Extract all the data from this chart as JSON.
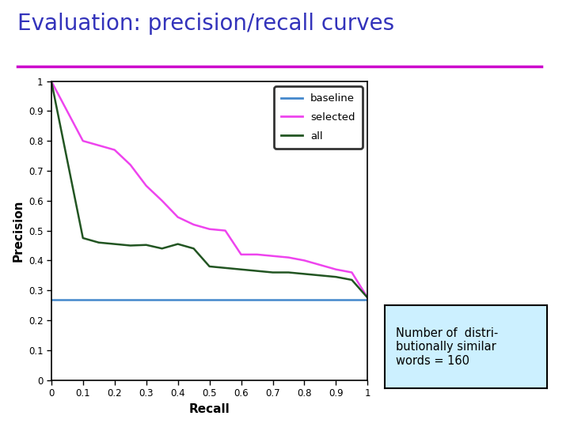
{
  "title": "Evaluation: precision/recall curves",
  "title_color": "#3333bb",
  "title_fontsize": 20,
  "xlabel": "Recall",
  "ylabel": "Precision",
  "xlabel_fontsize": 11,
  "ylabel_fontsize": 11,
  "separator_color": "#cc00cc",
  "baseline": {
    "x": [
      0.0,
      1.0
    ],
    "y": [
      0.27,
      0.27
    ],
    "color": "#4488cc",
    "linewidth": 1.8,
    "label": "baseline"
  },
  "selected": {
    "x": [
      0.0,
      0.1,
      0.2,
      0.25,
      0.3,
      0.35,
      0.4,
      0.45,
      0.5,
      0.55,
      0.6,
      0.65,
      0.7,
      0.75,
      0.8,
      0.85,
      0.9,
      0.95,
      1.0
    ],
    "y": [
      1.0,
      0.8,
      0.77,
      0.72,
      0.65,
      0.6,
      0.545,
      0.52,
      0.505,
      0.5,
      0.42,
      0.42,
      0.415,
      0.41,
      0.4,
      0.385,
      0.37,
      0.36,
      0.275
    ],
    "color": "#ee44ee",
    "linewidth": 1.8,
    "label": "selected"
  },
  "all": {
    "x": [
      0.0,
      0.1,
      0.15,
      0.2,
      0.25,
      0.3,
      0.35,
      0.4,
      0.45,
      0.5,
      0.55,
      0.6,
      0.65,
      0.7,
      0.75,
      0.8,
      0.85,
      0.9,
      0.95,
      1.0
    ],
    "y": [
      1.0,
      0.475,
      0.46,
      0.455,
      0.45,
      0.452,
      0.44,
      0.455,
      0.44,
      0.38,
      0.375,
      0.37,
      0.365,
      0.36,
      0.36,
      0.355,
      0.35,
      0.345,
      0.335,
      0.275
    ],
    "color": "#225522",
    "linewidth": 1.8,
    "label": "all"
  },
  "annotation_text": "Number of  distri-\nbutionally similar\nwords = 160",
  "annotation_bg": "#ccf0ff",
  "xlim": [
    0.0,
    1.0
  ],
  "ylim": [
    0.0,
    1.0
  ],
  "xticks": [
    0.0,
    0.1,
    0.2,
    0.3,
    0.4,
    0.5,
    0.6,
    0.7,
    0.8,
    0.9,
    1.0
  ],
  "yticks": [
    0.0,
    0.1,
    0.2,
    0.3,
    0.4,
    0.5,
    0.6,
    0.7,
    0.8,
    0.9,
    1.0
  ],
  "xtick_labels": [
    "0",
    "0.1",
    "0.2",
    "0.3",
    "0.4",
    "0.5",
    "0.6",
    "0.7",
    "0.8",
    "0.9",
    "1"
  ],
  "ytick_labels": [
    "0",
    "0.1",
    "0.2",
    "0.3",
    "0.4",
    "0.5",
    "0.6",
    "0.7",
    "0.8",
    "0.9",
    "1"
  ]
}
